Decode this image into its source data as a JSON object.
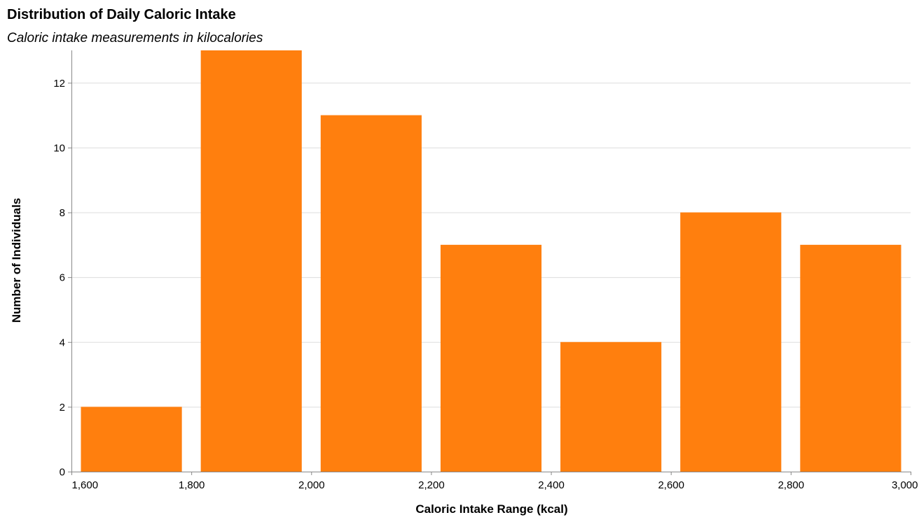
{
  "chart_data": {
    "type": "bar",
    "title": "Distribution of Daily Caloric Intake",
    "subtitle": "Caloric intake measurements in kilocalories",
    "xlabel": "Caloric Intake Range (kcal)",
    "ylabel": "Number of Individuals",
    "bins": [
      {
        "x0": 1600,
        "x1": 1800,
        "value": 2
      },
      {
        "x0": 1800,
        "x1": 2000,
        "value": 13
      },
      {
        "x0": 2000,
        "x1": 2200,
        "value": 11
      },
      {
        "x0": 2200,
        "x1": 2400,
        "value": 7
      },
      {
        "x0": 2400,
        "x1": 2600,
        "value": 4
      },
      {
        "x0": 2600,
        "x1": 2800,
        "value": 8
      },
      {
        "x0": 2800,
        "x1": 3000,
        "value": 7
      }
    ],
    "xlim": [
      1600,
      3000
    ],
    "ylim": [
      0,
      13
    ],
    "xticks": [
      "1,600",
      "1,800",
      "2,000",
      "2,200",
      "2,400",
      "2,600",
      "2,800",
      "3,000"
    ],
    "xtick_values": [
      1600,
      1800,
      2000,
      2200,
      2400,
      2600,
      2800,
      3000
    ],
    "yticks": [
      "0",
      "2",
      "4",
      "6",
      "8",
      "10",
      "12"
    ],
    "ytick_values": [
      0,
      2,
      4,
      6,
      8,
      10,
      12
    ],
    "bar_color": "#ff7f0e",
    "grid": true
  }
}
